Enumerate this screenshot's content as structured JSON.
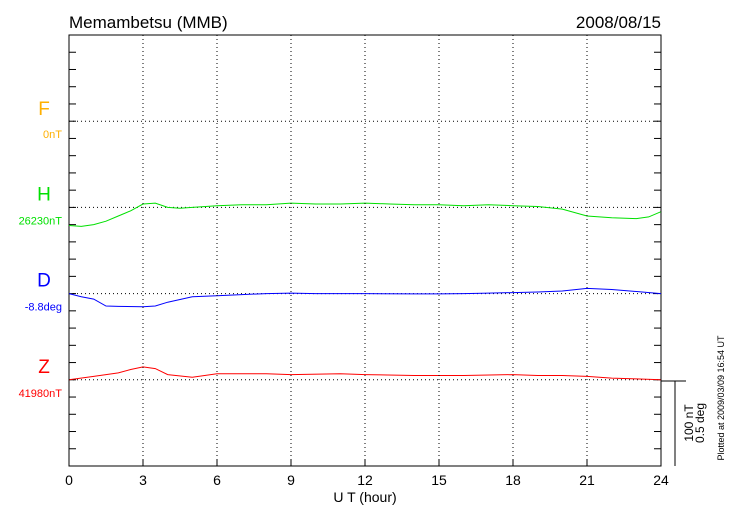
{
  "chart_data": {
    "type": "line",
    "title": "Memambetsu (MMB)",
    "date": "2008/08/15",
    "xlabel": "U T (hour)",
    "xlim": [
      0,
      24
    ],
    "xticks": [
      "0",
      "3",
      "6",
      "9",
      "12",
      "15",
      "18",
      "21",
      "24"
    ],
    "scale_bar": {
      "line1": "100 nT",
      "line2": "0.5 deg"
    },
    "footer": "Plotted at 2009/03/09 16:54 UT",
    "grid": "dotted baselines",
    "series": [
      {
        "name": "F",
        "baseline_label": "0nT",
        "color": "#ffb000",
        "unit": "nT",
        "baseline": 0,
        "scale_per_bar": 100,
        "points": []
      },
      {
        "name": "H",
        "baseline_label": "26230nT",
        "color": "#00e000",
        "unit": "nT",
        "baseline": 26230,
        "scale_per_bar": 100,
        "points": [
          [
            0,
            26209
          ],
          [
            0.5,
            26208
          ],
          [
            1,
            26210
          ],
          [
            1.5,
            26214
          ],
          [
            2,
            26220
          ],
          [
            2.5,
            26226
          ],
          [
            3,
            26234
          ],
          [
            3.5,
            26235
          ],
          [
            4,
            26230
          ],
          [
            4.5,
            26229
          ],
          [
            5,
            26230
          ],
          [
            6,
            26232
          ],
          [
            7,
            26233
          ],
          [
            8,
            26233
          ],
          [
            9,
            26235
          ],
          [
            10,
            26234
          ],
          [
            11,
            26234
          ],
          [
            12,
            26235
          ],
          [
            13,
            26234
          ],
          [
            14,
            26233
          ],
          [
            15,
            26233
          ],
          [
            16,
            26232
          ],
          [
            17,
            26233
          ],
          [
            18,
            26232
          ],
          [
            19,
            26231
          ],
          [
            20,
            26228
          ],
          [
            21,
            26220
          ],
          [
            22,
            26218
          ],
          [
            23,
            26217
          ],
          [
            23.5,
            26219
          ],
          [
            24,
            26225
          ]
        ]
      },
      {
        "name": "D",
        "baseline_label": "-8.8deg",
        "color": "#0000ff",
        "unit": "deg",
        "baseline": -8.8,
        "scale_per_bar": 0.5,
        "points": [
          [
            0,
            -8.8
          ],
          [
            0.5,
            -8.818
          ],
          [
            1,
            -8.832
          ],
          [
            1.5,
            -8.872
          ],
          [
            2,
            -8.874
          ],
          [
            3,
            -8.876
          ],
          [
            3.5,
            -8.872
          ],
          [
            4,
            -8.85
          ],
          [
            5,
            -8.818
          ],
          [
            6,
            -8.812
          ],
          [
            7,
            -8.806
          ],
          [
            8,
            -8.8
          ],
          [
            9,
            -8.797
          ],
          [
            10,
            -8.8
          ],
          [
            12,
            -8.8
          ],
          [
            14,
            -8.802
          ],
          [
            15,
            -8.802
          ],
          [
            16,
            -8.8
          ],
          [
            17,
            -8.797
          ],
          [
            18,
            -8.794
          ],
          [
            19,
            -8.791
          ],
          [
            20,
            -8.785
          ],
          [
            21,
            -8.77
          ],
          [
            22,
            -8.776
          ],
          [
            23,
            -8.788
          ],
          [
            24,
            -8.8
          ]
        ]
      },
      {
        "name": "Z",
        "baseline_label": "41980nT",
        "color": "#ff0000",
        "unit": "nT",
        "baseline": 41980,
        "scale_per_bar": 100,
        "points": [
          [
            0,
            41980
          ],
          [
            1,
            41984
          ],
          [
            2,
            41988
          ],
          [
            2.5,
            41992
          ],
          [
            3,
            41995
          ],
          [
            3.5,
            41993
          ],
          [
            4,
            41986
          ],
          [
            5,
            41983
          ],
          [
            6,
            41987
          ],
          [
            8,
            41987
          ],
          [
            9,
            41986
          ],
          [
            11,
            41987
          ],
          [
            12,
            41986
          ],
          [
            14,
            41985
          ],
          [
            16,
            41985
          ],
          [
            18,
            41986
          ],
          [
            19,
            41985
          ],
          [
            20,
            41985
          ],
          [
            21,
            41984
          ],
          [
            22,
            41982
          ],
          [
            23,
            41981
          ],
          [
            24,
            41980
          ]
        ]
      }
    ]
  }
}
